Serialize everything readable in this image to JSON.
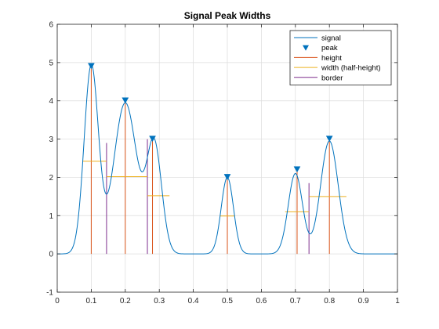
{
  "chart_data": {
    "type": "line",
    "title": "Signal Peak Widths",
    "xlabel": "",
    "ylabel": "",
    "xlim": [
      0,
      1
    ],
    "ylim": [
      -1,
      6
    ],
    "xticks": [
      "0",
      "0.1",
      "0.2",
      "0.3",
      "0.4",
      "0.5",
      "0.6",
      "0.7",
      "0.8",
      "0.9",
      "1"
    ],
    "yticks": [
      "-1",
      "0",
      "1",
      "2",
      "3",
      "4",
      "5",
      "6"
    ],
    "grid": true,
    "legend_position": "top-right",
    "colors": {
      "signal": "#0072BD",
      "height": "#D95319",
      "width": "#EDB120",
      "border": "#7E2F8E",
      "grid": "#dcdcdc",
      "axis": "#262626"
    },
    "legend": [
      {
        "key": "signal",
        "label": "signal"
      },
      {
        "key": "peak",
        "label": "peak"
      },
      {
        "key": "height",
        "label": "height"
      },
      {
        "key": "width",
        "label": "width (half-height)"
      },
      {
        "key": "border",
        "label": "border"
      }
    ],
    "signal_components": [
      {
        "center": 0.1,
        "amplitude": 4.9,
        "sigma": 0.021
      },
      {
        "center": 0.2,
        "amplitude": 3.95,
        "sigma": 0.034
      },
      {
        "center": 0.285,
        "amplitude": 2.85,
        "sigma": 0.022
      },
      {
        "center": 0.5,
        "amplitude": 2.0,
        "sigma": 0.018
      },
      {
        "center": 0.7,
        "amplitude": 2.1,
        "sigma": 0.021
      },
      {
        "center": 0.8,
        "amplitude": 2.95,
        "sigma": 0.026
      }
    ],
    "peaks": [
      {
        "x": 0.1,
        "y": 4.9
      },
      {
        "x": 0.2,
        "y": 4.0
      },
      {
        "x": 0.28,
        "y": 3.0
      },
      {
        "x": 0.5,
        "y": 2.0
      },
      {
        "x": 0.705,
        "y": 2.2
      },
      {
        "x": 0.8,
        "y": 3.0
      }
    ],
    "heights": [
      {
        "x": 0.1,
        "y0": 0,
        "y1": 4.9
      },
      {
        "x": 0.2,
        "y0": 0,
        "y1": 4.0
      },
      {
        "x": 0.28,
        "y0": 0,
        "y1": 3.0
      },
      {
        "x": 0.5,
        "y0": 0,
        "y1": 2.0
      },
      {
        "x": 0.705,
        "y0": 0,
        "y1": 2.2
      },
      {
        "x": 0.8,
        "y0": 0,
        "y1": 3.0
      }
    ],
    "widths": [
      {
        "y": 2.42,
        "x0": 0.075,
        "x1": 0.145
      },
      {
        "y": 2.02,
        "x0": 0.145,
        "x1": 0.265
      },
      {
        "y": 1.52,
        "x0": 0.265,
        "x1": 0.33
      },
      {
        "y": 0.99,
        "x0": 0.478,
        "x1": 0.522
      },
      {
        "y": 1.1,
        "x0": 0.67,
        "x1": 0.74
      },
      {
        "y": 1.5,
        "x0": 0.74,
        "x1": 0.85
      }
    ],
    "borders": [
      {
        "x": 0.145,
        "y0": 0,
        "y1": 2.9
      },
      {
        "x": 0.265,
        "y0": 0,
        "y1": 3.0
      },
      {
        "x": 0.74,
        "y0": 0,
        "y1": 1.85
      }
    ]
  }
}
